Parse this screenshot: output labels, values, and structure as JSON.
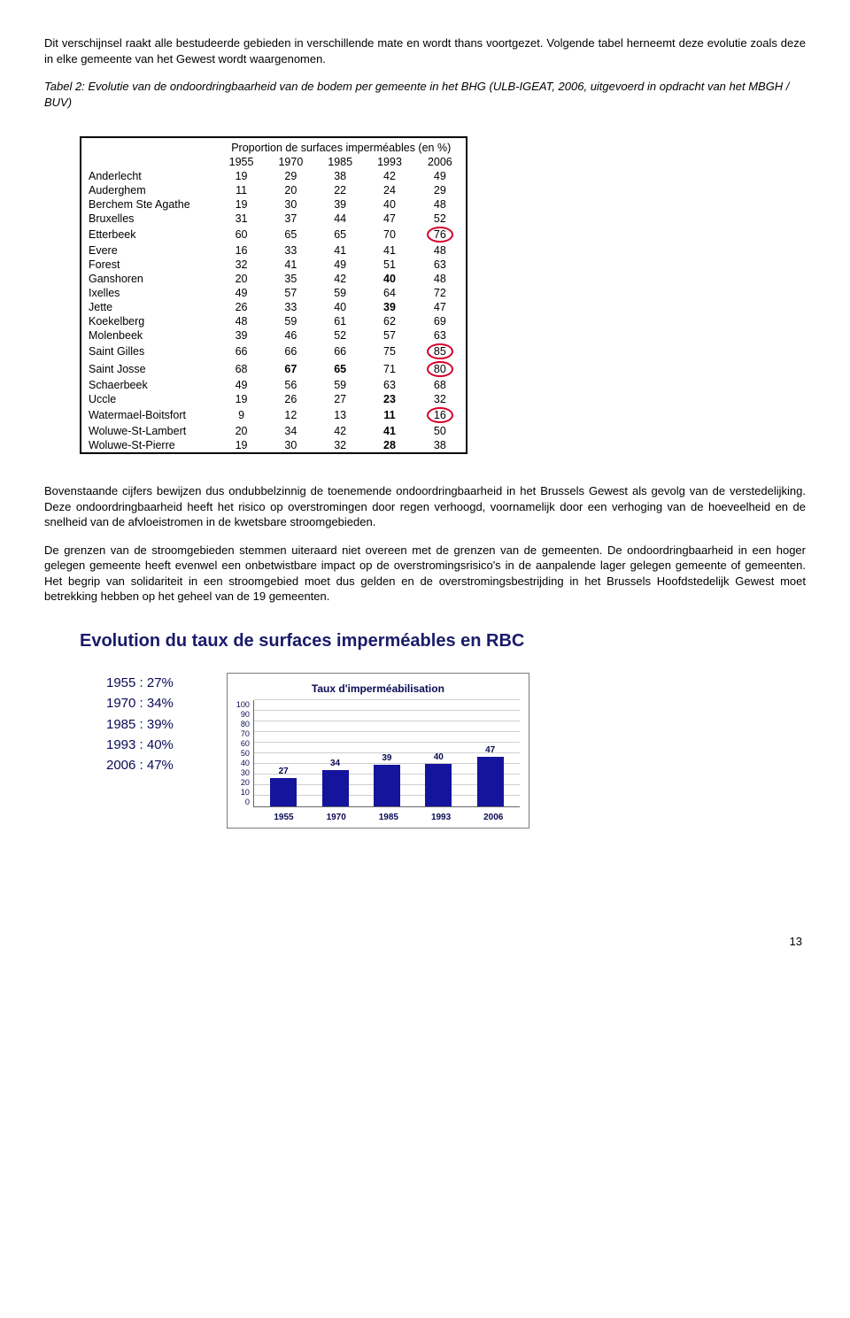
{
  "paragraphs": {
    "p1": "Dit verschijnsel raakt alle bestudeerde gebieden in verschillende mate en wordt thans voortgezet. Volgende tabel herneemt deze evolutie zoals deze in elke gemeente van het Gewest wordt waargenomen.",
    "caption": "Tabel 2: Evolutie van de ondoordringbaarheid van de bodem per gemeente in het BHG (ULB-IGEAT, 2006, uitgevoerd in opdracht van het MBGH / BUV)",
    "p2": "Bovenstaande cijfers bewijzen dus ondubbelzinnig de toenemende ondoordringbaarheid in het Brussels Gewest als gevolg van de verstedelijking. Deze ondoordringbaarheid heeft het risico op overstromingen door regen verhoogd, voornamelijk door een verhoging van de hoeveelheid en de snelheid van de afvloeistromen in de kwetsbare stroomgebieden.",
    "p3": "De grenzen van de stroomgebieden stemmen uiteraard niet overeen met de grenzen van de gemeenten. De ondoordringbaarheid in een hoger gelegen gemeente heeft evenwel een onbetwistbare impact op de overstromingsrisico's in de aanpalende lager gelegen gemeente of gemeenten. Het begrip van solidariteit in een stroomgebied moet dus gelden en de overstromingsbestrijding in het Brussels Hoofdstedelijk Gewest moet betrekking hebben op het geheel van de 19 gemeenten."
  },
  "table": {
    "title": "Proportion de surfaces imperméables (en %)",
    "years": [
      "1955",
      "1970",
      "1985",
      "1993",
      "2006"
    ],
    "rows": [
      {
        "name": "Anderlecht",
        "vals": [
          "19",
          "29",
          "38",
          "42",
          "49"
        ]
      },
      {
        "name": "Auderghem",
        "vals": [
          "11",
          "20",
          "22",
          "24",
          "29"
        ]
      },
      {
        "name": "Berchem Ste Agathe",
        "vals": [
          "19",
          "30",
          "39",
          "40",
          "48"
        ]
      },
      {
        "name": "Bruxelles",
        "vals": [
          "31",
          "37",
          "44",
          "47",
          "52"
        ]
      },
      {
        "name": "Etterbeek",
        "vals": [
          "60",
          "65",
          "65",
          "70",
          "76"
        ],
        "circleIdx": 4
      },
      {
        "name": "Evere",
        "vals": [
          "16",
          "33",
          "41",
          "41",
          "48"
        ]
      },
      {
        "name": "Forest",
        "vals": [
          "32",
          "41",
          "49",
          "51",
          "63"
        ]
      },
      {
        "name": "Ganshoren",
        "vals": [
          "20",
          "35",
          "42",
          "40",
          "48"
        ],
        "boldIdx": [
          3
        ]
      },
      {
        "name": "Ixelles",
        "vals": [
          "49",
          "57",
          "59",
          "64",
          "72"
        ]
      },
      {
        "name": "Jette",
        "vals": [
          "26",
          "33",
          "40",
          "39",
          "47"
        ],
        "boldIdx": [
          3
        ]
      },
      {
        "name": "Koekelberg",
        "vals": [
          "48",
          "59",
          "61",
          "62",
          "69"
        ]
      },
      {
        "name": "Molenbeek",
        "vals": [
          "39",
          "46",
          "52",
          "57",
          "63"
        ]
      },
      {
        "name": "Saint Gilles",
        "vals": [
          "66",
          "66",
          "66",
          "75",
          "85"
        ],
        "circleIdx": 4
      },
      {
        "name": "Saint Josse",
        "vals": [
          "68",
          "67",
          "65",
          "71",
          "80"
        ],
        "boldIdx": [
          1,
          2
        ],
        "circleIdx": 4
      },
      {
        "name": "Schaerbeek",
        "vals": [
          "49",
          "56",
          "59",
          "63",
          "68"
        ]
      },
      {
        "name": "Uccle",
        "vals": [
          "19",
          "26",
          "27",
          "23",
          "32"
        ],
        "boldIdx": [
          3
        ]
      },
      {
        "name": "Watermael-Boitsfort",
        "vals": [
          "9",
          "12",
          "13",
          "11",
          "16"
        ],
        "boldIdx": [
          3
        ],
        "circleIdx": 4
      },
      {
        "name": "Woluwe-St-Lambert",
        "vals": [
          "20",
          "34",
          "42",
          "41",
          "50"
        ],
        "boldIdx": [
          3
        ]
      },
      {
        "name": "Woluwe-St-Pierre",
        "vals": [
          "19",
          "30",
          "32",
          "28",
          "38"
        ],
        "boldIdx": [
          3
        ]
      }
    ]
  },
  "slide": {
    "title": "Evolution du taux de surfaces imperméables en RBC",
    "year_lines": [
      "1955 : 27%",
      "1970 : 34%",
      "1985 : 39%",
      "1993 : 40%",
      "2006 : 47%"
    ]
  },
  "chart": {
    "type": "bar",
    "title": "Taux d'imperméabilisation",
    "categories": [
      "1955",
      "1970",
      "1985",
      "1993",
      "2006"
    ],
    "values": [
      27,
      34,
      39,
      40,
      47
    ],
    "ylim": [
      0,
      100
    ],
    "ytick_step": 10,
    "bar_color": "#14149c",
    "background_color": "#ffffff",
    "grid_color": "#cfcfcf",
    "text_color": "#0a0a55",
    "title_fontsize": 12,
    "label_fontsize": 10
  },
  "page_number": "13"
}
